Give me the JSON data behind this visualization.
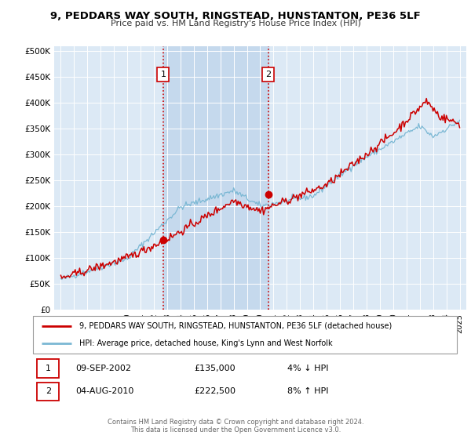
{
  "title": "9, PEDDARS WAY SOUTH, RINGSTEAD, HUNSTANTON, PE36 5LF",
  "subtitle": "Price paid vs. HM Land Registry's House Price Index (HPI)",
  "legend_line1": "9, PEDDARS WAY SOUTH, RINGSTEAD, HUNSTANTON, PE36 5LF (detached house)",
  "legend_line2": "HPI: Average price, detached house, King's Lynn and West Norfolk",
  "annotation1_date": "09-SEP-2002",
  "annotation1_price": "£135,000",
  "annotation1_hpi": "4% ↓ HPI",
  "annotation2_date": "04-AUG-2010",
  "annotation2_price": "£222,500",
  "annotation2_hpi": "8% ↑ HPI",
  "footer": "Contains HM Land Registry data © Crown copyright and database right 2024.\nThis data is licensed under the Open Government Licence v3.0.",
  "vline1_year": 2002.7,
  "vline2_year": 2010.6,
  "sale1_year": 2002.7,
  "sale1_price": 135000,
  "sale2_year": 2010.6,
  "sale2_price": 222500,
  "xlim": [
    1994.5,
    2025.5
  ],
  "ylim": [
    0,
    510000
  ],
  "background_color": "#dce9f5",
  "red_line_color": "#cc0000",
  "blue_line_color": "#7bb8d4",
  "vline_color": "#cc0000",
  "highlight_fill": "#c5d9ed",
  "grid_color": "#ffffff",
  "box_edge_color": "#cc0000"
}
